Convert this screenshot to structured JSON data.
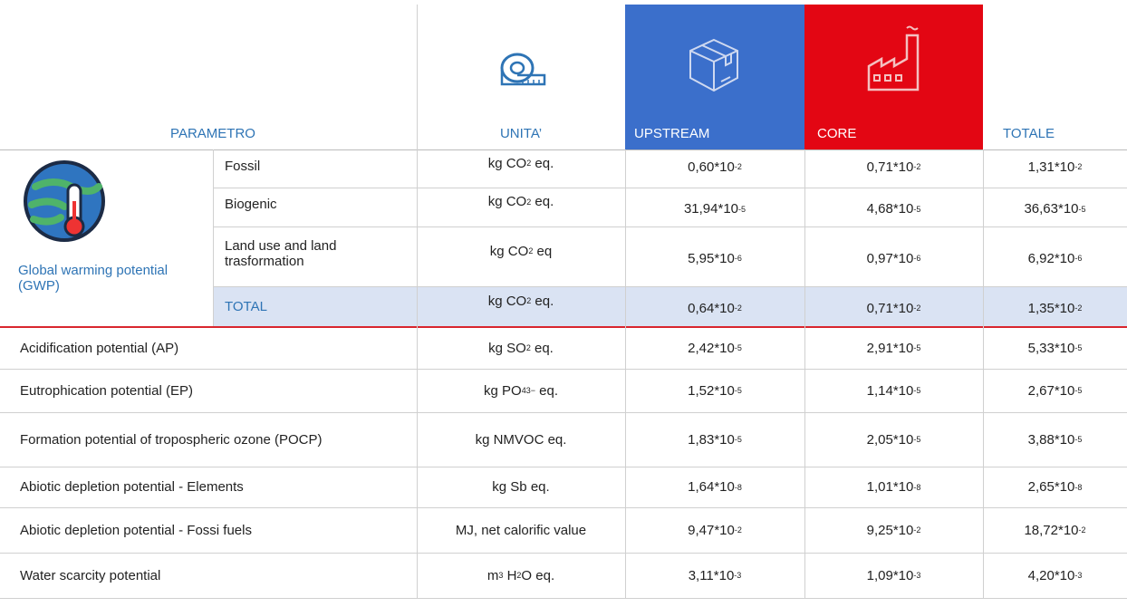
{
  "header": {
    "columns": [
      "PARAMETRO",
      "UNITA’",
      "UPSTREAM",
      "CORE",
      "TOTALE"
    ]
  },
  "gwp": {
    "label": "Global warming potential (GWP)",
    "rows": [
      {
        "name": "Fossil",
        "unit": [
          {
            "text": "kg CO"
          },
          {
            "text": "2",
            "script": "sub"
          },
          {
            "text": " eq."
          }
        ],
        "values": [
          {
            "base": "0,60*10",
            "exp": "-2"
          },
          {
            "base": "0,71*10",
            "exp": "-2"
          },
          {
            "base": "1,31*10",
            "exp": "-2"
          }
        ]
      },
      {
        "name": "Biogenic",
        "unit": [
          {
            "text": "kg CO"
          },
          {
            "text": "2",
            "script": "sub"
          },
          {
            "text": " eq."
          }
        ],
        "values": [
          {
            "base": "31,94*10",
            "exp": "-5"
          },
          {
            "base": "4,68*10",
            "exp": "-5"
          },
          {
            "base": "36,63*10",
            "exp": "-5"
          }
        ]
      },
      {
        "name": "Land use and land trasformation",
        "unit": [
          {
            "text": "kg CO"
          },
          {
            "text": "2",
            "script": "sub"
          },
          {
            "text": " eq"
          }
        ],
        "values": [
          {
            "base": "5,95*10",
            "exp": "-6"
          },
          {
            "base": "0,97*10",
            "exp": "-6"
          },
          {
            "base": "6,92*10",
            "exp": "-6"
          }
        ]
      },
      {
        "name": "TOTAL",
        "unit": [
          {
            "text": "kg CO"
          },
          {
            "text": "2",
            "script": "sub"
          },
          {
            "text": " eq."
          }
        ],
        "values": [
          {
            "base": "0,64*10",
            "exp": "-2"
          },
          {
            "base": "0,71*10",
            "exp": "-2"
          },
          {
            "base": "1,35*10",
            "exp": "-2"
          }
        ]
      }
    ]
  },
  "rows": [
    {
      "name": "Acidification potential (AP)",
      "unit": [
        {
          "text": "kg SO"
        },
        {
          "text": "2",
          "script": "sub"
        },
        {
          "text": " eq."
        }
      ],
      "values": [
        {
          "base": "2,42*10",
          "exp": "-5"
        },
        {
          "base": "2,91*10",
          "exp": "-5"
        },
        {
          "base": "5,33*10",
          "exp": "-5"
        }
      ]
    },
    {
      "name": "Eutrophication potential (EP)",
      "unit": [
        {
          "text": "kg PO"
        },
        {
          "text": "4",
          "script": "sub"
        },
        {
          "text": "3−",
          "script": "sup"
        },
        {
          "text": " eq."
        }
      ],
      "values": [
        {
          "base": "1,52*10",
          "exp": "-5"
        },
        {
          "base": "1,14*10",
          "exp": "-5"
        },
        {
          "base": "2,67*10",
          "exp": "-5"
        }
      ]
    },
    {
      "name": "Formation potential of tropospheric ozone (POCP)",
      "unit": [
        {
          "text": "kg NMVOC eq."
        }
      ],
      "values": [
        {
          "base": "1,83*10",
          "exp": "-5"
        },
        {
          "base": "2,05*10",
          "exp": "-5"
        },
        {
          "base": "3,88*10",
          "exp": "-5"
        }
      ]
    },
    {
      "name": "Abiotic depletion potential - Elements",
      "unit": [
        {
          "text": "kg Sb eq."
        }
      ],
      "values": [
        {
          "base": "1,64*10",
          "exp": "-8"
        },
        {
          "base": "1,01*10",
          "exp": "-8"
        },
        {
          "base": "2,65*10",
          "exp": "-8"
        }
      ]
    },
    {
      "name": "Abiotic depletion potential - Fossi fuels",
      "unit": [
        {
          "text": "MJ, net calorific value"
        }
      ],
      "values": [
        {
          "base": "9,47*10",
          "exp": "-2"
        },
        {
          "base": "9,25*10",
          "exp": "-2"
        },
        {
          "base": "18,72*10",
          "exp": "-2"
        }
      ]
    },
    {
      "name": "Water scarcity potential",
      "unit": [
        {
          "text": "m"
        },
        {
          "text": "3",
          "script": "sub"
        },
        {
          "text": " H"
        },
        {
          "text": "2",
          "script": "sub"
        },
        {
          "text": "O eq."
        }
      ],
      "values": [
        {
          "base": "3,11*10",
          "exp": "-3"
        },
        {
          "base": "1,09*10",
          "exp": "-3"
        },
        {
          "base": "4,20*10",
          "exp": "-3"
        }
      ]
    }
  ]
}
